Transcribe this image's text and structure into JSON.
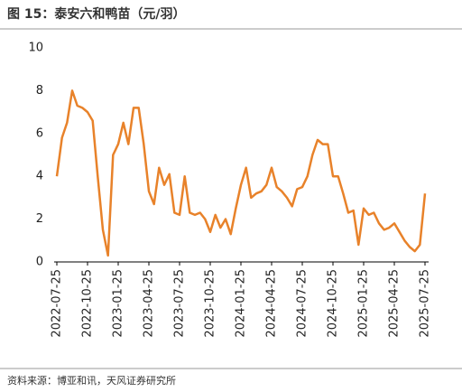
{
  "chart_data": {
    "type": "line",
    "title": "图 15：泰安六和鸭苗（元/羽）",
    "source": "资料来源：博亚和讯，天风证券研究所",
    "categories": [
      "2022-07-25",
      null,
      null,
      null,
      null,
      null,
      "2022-10-25",
      null,
      null,
      null,
      null,
      null,
      "2023-01-25",
      null,
      null,
      null,
      null,
      null,
      "2023-04-25",
      null,
      null,
      null,
      null,
      null,
      "2023-07-25",
      null,
      null,
      null,
      null,
      null,
      "2023-10-25",
      null,
      null,
      null,
      null,
      null,
      "2024-01-25",
      null,
      null,
      null,
      null,
      null,
      "2024-04-25",
      null,
      null,
      null,
      null,
      null,
      "2024-07-25",
      null,
      null,
      null,
      null,
      null,
      "2024-10-25",
      null,
      null,
      null,
      null,
      null,
      "2025-01-25",
      null,
      null,
      null,
      null,
      null,
      "2025-04-25",
      null,
      null,
      null,
      null,
      null,
      "2025-07-25"
    ],
    "series": [
      {
        "name": "泰安六和鸭苗",
        "color": "#e8822a",
        "values": [
          4.0,
          5.8,
          6.5,
          8.0,
          7.3,
          7.2,
          7.0,
          6.6,
          4.0,
          1.5,
          0.3,
          5.0,
          5.5,
          6.5,
          5.5,
          7.2,
          7.2,
          5.5,
          3.3,
          2.7,
          4.4,
          3.6,
          4.1,
          2.3,
          2.2,
          4.0,
          2.3,
          2.2,
          2.3,
          2.0,
          1.4,
          2.2,
          1.6,
          2.0,
          1.3,
          2.5,
          3.6,
          4.4,
          3.0,
          3.2,
          3.3,
          3.6,
          4.4,
          3.5,
          3.3,
          3.0,
          2.6,
          3.4,
          3.5,
          4.0,
          5.0,
          5.7,
          5.5,
          5.5,
          4.0,
          4.0,
          3.2,
          2.3,
          2.4,
          0.8,
          2.5,
          2.2,
          2.3,
          1.8,
          1.5,
          1.6,
          1.8,
          1.4,
          1.0,
          0.7,
          0.5,
          0.8,
          3.2
        ]
      }
    ],
    "ylim": [
      0,
      10
    ],
    "yticks": [
      0,
      2,
      4,
      6,
      8,
      10
    ],
    "grid": false
  }
}
